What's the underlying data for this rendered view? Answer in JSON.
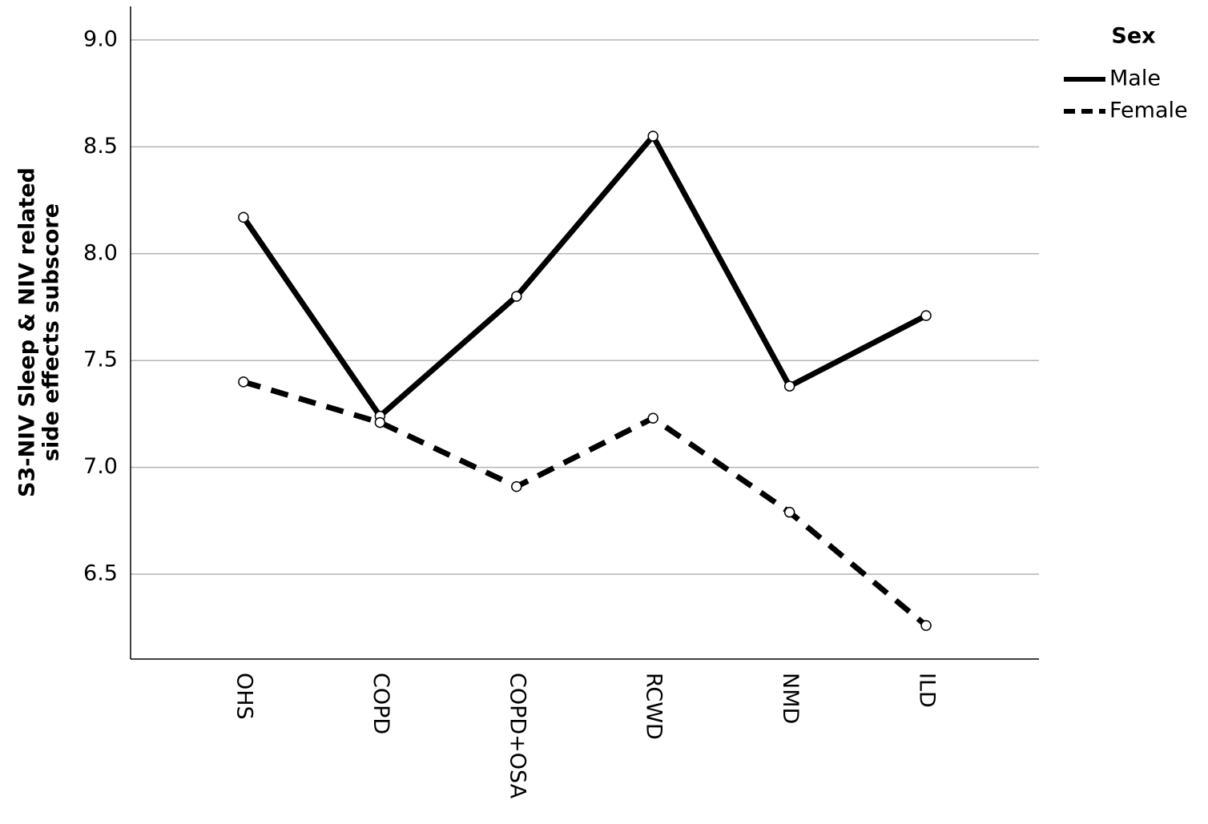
{
  "chart_data": {
    "type": "line",
    "ylabel": [
      "S3-NIV Sleep & NIV related",
      "side effects subscore"
    ],
    "categories": [
      "OHS",
      "COPD",
      "COPD+OSA",
      "RCWD",
      "NMD",
      "ILD"
    ],
    "series": [
      {
        "name": "Male",
        "color": "#000000",
        "line_style": "solid",
        "values": [
          8.17,
          7.24,
          7.8,
          8.55,
          7.38,
          7.71
        ]
      },
      {
        "name": "Female",
        "color": "#000000",
        "line_style": "dashed",
        "values": [
          7.4,
          7.21,
          6.91,
          7.23,
          6.79,
          6.26
        ]
      }
    ],
    "ylim": [
      6.103,
      9.157
    ],
    "yticks": [
      {
        "value": 6.5,
        "label": "6.5"
      },
      {
        "value": 7,
        "label": "7.0"
      },
      7.5,
      {
        "value": 8,
        "label": "8.0"
      },
      8.5,
      {
        "value": 9,
        "label": "9.0"
      }
    ],
    "grid": true,
    "legend_title": "Sex",
    "legend_position": "top-right"
  }
}
